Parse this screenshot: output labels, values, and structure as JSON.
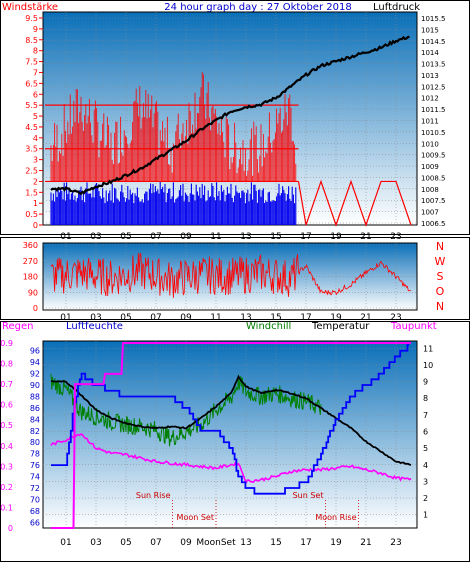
{
  "header": {
    "title": "24 hour graph day : 27 Oktober 2018",
    "left_label": "Windstärke",
    "right_label": "Luftdruck"
  },
  "colors": {
    "wind": "#ff0000",
    "wind_fill": "#0000ee",
    "pressure": "#000000",
    "humidity": "#0000ff",
    "windchill": "#008000",
    "temperature": "#000000",
    "dewpoint": "#ff00ff",
    "rain": "#ff00ff",
    "time_event": "#cc0000",
    "frame": "#000000",
    "grid": "#888888",
    "panel_top": "#0a6fb8",
    "panel_bottom": "#ffffff"
  },
  "chart_data": [
    {
      "type": "line",
      "title": "24 hour graph day : 27 Oktober 2018",
      "x_ticks": [
        "01",
        "03",
        "05",
        "07",
        "09",
        "11",
        "13",
        "15",
        "17",
        "19",
        "21",
        "23"
      ],
      "y_left": {
        "label": "Windstärke",
        "ticks": [
          "0",
          "0.5",
          "1",
          "1.5",
          "2",
          "2.5",
          "3",
          "3.5",
          "4",
          "4.5",
          "5",
          "5.5",
          "6",
          "6.5",
          "7",
          "7.5",
          "8",
          "8.5",
          "9",
          "9.5"
        ]
      },
      "y_right": {
        "label": "Luftdruck",
        "ticks": [
          "1006.5",
          "1007",
          "1007.5",
          "1008",
          "1008.5",
          "1009",
          "1009.5",
          "1010",
          "1010.5",
          "1011",
          "1011.5",
          "1012",
          "1012.5",
          "1013",
          "1013.5",
          "1014",
          "1014.5",
          "1015",
          "1015.5"
        ]
      },
      "series": [
        {
          "name": "Luftdruck",
          "x": [
            0,
            1,
            2,
            3,
            4,
            5,
            6,
            7,
            8,
            9,
            10,
            11,
            12,
            13,
            14,
            15,
            16,
            17,
            18,
            19,
            20,
            21,
            22,
            23,
            24
          ],
          "y": [
            1008.0,
            1008.0,
            1007.8,
            1008.1,
            1008.3,
            1008.6,
            1008.9,
            1009.3,
            1009.7,
            1010.1,
            1010.6,
            1011.0,
            1011.4,
            1011.6,
            1011.7,
            1012.0,
            1012.5,
            1013.0,
            1013.4,
            1013.6,
            1013.8,
            1014.0,
            1014.2,
            1014.5,
            1014.7
          ]
        },
        {
          "name": "Windstärke",
          "x": [
            0,
            2,
            4,
            6,
            8,
            10,
            12,
            14,
            16,
            16.5,
            17,
            18,
            19,
            20,
            21,
            22,
            23,
            24
          ],
          "y": [
            3.5,
            5.5,
            3.5,
            5.5,
            3.5,
            6,
            3.5,
            3.5,
            5.5,
            2,
            0,
            2,
            0,
            2,
            0,
            2,
            2,
            0
          ]
        }
      ]
    },
    {
      "type": "line",
      "title": "",
      "x_ticks": [
        "01",
        "03",
        "05",
        "07",
        "09",
        "11",
        "13",
        "15",
        "17",
        "19",
        "21",
        "23"
      ],
      "y_left": {
        "ticks": [
          "0",
          "90",
          "180",
          "270",
          "360"
        ]
      },
      "y_right": {
        "ticks": [
          "N",
          "W",
          "S",
          "O",
          "N"
        ]
      },
      "series": [
        {
          "name": "Windrichtung",
          "x": [
            0,
            2,
            4,
            6,
            8,
            10,
            12,
            14,
            16,
            17,
            18,
            19,
            20,
            21,
            22,
            23,
            24
          ],
          "y": [
            180,
            200,
            170,
            210,
            160,
            190,
            180,
            200,
            170,
            240,
            90,
            90,
            135,
            200,
            260,
            180,
            90
          ]
        }
      ]
    },
    {
      "type": "line",
      "title": "",
      "x_ticks": [
        "01",
        "03",
        "05",
        "07",
        "09",
        "MoonSet",
        "13",
        "15",
        "17",
        "19",
        "21",
        "23"
      ],
      "y_left_outer": {
        "label": "Regen",
        "ticks": [
          "0",
          "0.1",
          "0.2",
          "0.3",
          "0.4",
          "0.5",
          "0.6",
          "0.7",
          "0.8",
          "0.9"
        ]
      },
      "y_left_inner": {
        "label": "Luftfeuchte",
        "ticks": [
          "66",
          "68",
          "70",
          "72",
          "74",
          "76",
          "78",
          "80",
          "82",
          "84",
          "86",
          "88",
          "90",
          "92",
          "94",
          "96"
        ]
      },
      "y_right": {
        "ticks": [
          "1",
          "2",
          "3",
          "4",
          "5",
          "6",
          "7",
          "8",
          "9",
          "10",
          "11"
        ]
      },
      "legend": [
        "Windchill",
        "Temperatur",
        "Taupunkt"
      ],
      "annotations": [
        {
          "text": "Sun Rise",
          "x": 8.1
        },
        {
          "text": "Moon Set",
          "x": 11.0
        },
        {
          "text": "Sun Set",
          "x": 18.3
        },
        {
          "text": "Moon Rise",
          "x": 20.5
        }
      ],
      "series": [
        {
          "name": "Luftfeuchte",
          "x": [
            0,
            1,
            1.5,
            2,
            3,
            4,
            5,
            6,
            7,
            8,
            9,
            10,
            11,
            12,
            12.5,
            13,
            14,
            15,
            16,
            17,
            18,
            19,
            20,
            21,
            22,
            23,
            24
          ],
          "y": [
            76,
            76,
            86,
            92,
            90,
            89,
            88,
            88,
            88,
            88,
            86,
            82,
            82,
            79,
            74,
            72,
            71,
            71,
            72,
            73,
            78,
            84,
            88,
            90,
            92,
            95,
            97
          ]
        },
        {
          "name": "Temperatur",
          "x": [
            0,
            1,
            2,
            3,
            4,
            5,
            6,
            7,
            8,
            9,
            10,
            11,
            12,
            12.5,
            13,
            14,
            15,
            16,
            17,
            18,
            19,
            20,
            21,
            22,
            23,
            24
          ],
          "y": [
            9.0,
            9.0,
            8.2,
            7.3,
            6.8,
            6.5,
            6.3,
            6.2,
            6.3,
            6.2,
            6.8,
            7.5,
            8.3,
            9.3,
            8.7,
            8.3,
            8.5,
            8.3,
            8.0,
            7.4,
            6.8,
            6.2,
            5.4,
            4.8,
            4.2,
            4.0
          ]
        },
        {
          "name": "Windchill",
          "x": [
            0,
            1,
            2,
            3,
            4,
            5,
            6,
            7,
            8,
            9,
            10,
            11,
            12,
            12.5,
            13,
            14,
            15,
            16,
            17,
            18
          ],
          "y": [
            9.0,
            8.5,
            7.2,
            6.9,
            6.6,
            6.4,
            6.3,
            6.1,
            5.6,
            6.0,
            6.4,
            7.3,
            8.0,
            9.0,
            8.4,
            8.1,
            8.3,
            8.0,
            7.8,
            7.4
          ]
        },
        {
          "name": "Taupunkt",
          "x": [
            0,
            1,
            2,
            3,
            4,
            5,
            6,
            7,
            8,
            9,
            10,
            11,
            12,
            12.5,
            13,
            14,
            15,
            16,
            17,
            18,
            19,
            20,
            21,
            22,
            23,
            24
          ],
          "y": [
            5.2,
            5.5,
            5.9,
            5.0,
            4.7,
            4.6,
            4.4,
            4.2,
            4.1,
            4.0,
            3.9,
            3.8,
            4.0,
            4.1,
            3.0,
            3.1,
            3.3,
            3.6,
            3.7,
            3.7,
            3.8,
            3.9,
            3.7,
            3.5,
            3.2,
            3.1
          ]
        },
        {
          "name": "Regen",
          "x": [
            0,
            1.5,
            1.6,
            2.5,
            3.5,
            3.6,
            4.7,
            4.8,
            24
          ],
          "y": [
            0,
            0,
            0.7,
            0.7,
            0.7,
            0.75,
            0.75,
            0.9,
            0.9
          ]
        }
      ]
    }
  ]
}
